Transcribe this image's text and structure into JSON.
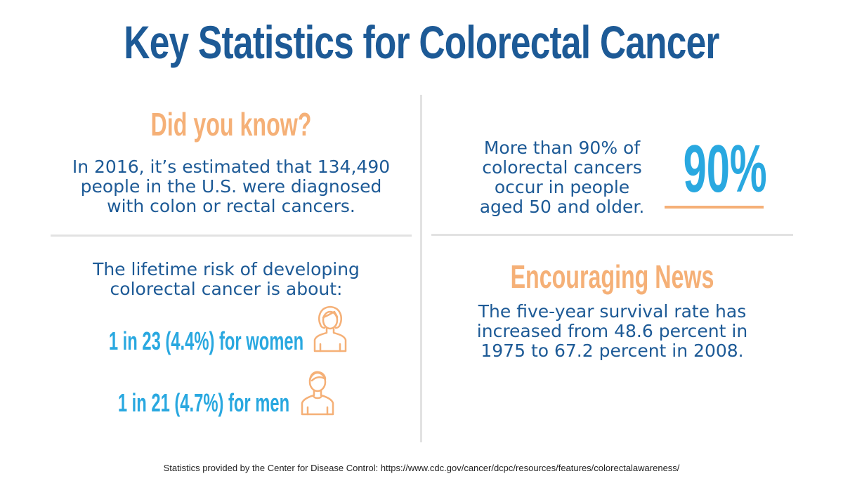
{
  "title": "Key Statistics for Colorectal Cancer",
  "colors": {
    "title": "#1d5a96",
    "accent_orange": "#f5b077",
    "accent_blue": "#29a8e0",
    "body": "#1d5a96"
  },
  "quadrant_tl": {
    "heading": "Did you know?",
    "lines": [
      "In 2016, it’s estimated that 134,490",
      "people in the U.S. were diagnosed",
      "with colon or rectal cancers."
    ]
  },
  "quadrant_tr": {
    "lines": [
      "More than 90% of",
      "colorectal cancers",
      "occur in people",
      "aged 50 and older."
    ],
    "big_stat": "90%"
  },
  "quadrant_bl": {
    "lines": [
      "The lifetime risk of developing",
      "colorectal cancer is about:"
    ],
    "women": {
      "text": "1 in 23 (4.4%) for women",
      "icon": "woman-icon"
    },
    "men": {
      "text": "1 in 21 (4.7%) for men",
      "icon": "man-icon"
    }
  },
  "quadrant_br": {
    "heading": "Encouraging News",
    "lines": [
      "The five-year survival rate has",
      "increased from 48.6 percent in",
      "1975 to 67.2 percent in 2008."
    ]
  },
  "footer": "Statistics provided by the Center for Disease Control: https://www.cdc.gov/cancer/dcpc/resources/features/colorectalawareness/"
}
